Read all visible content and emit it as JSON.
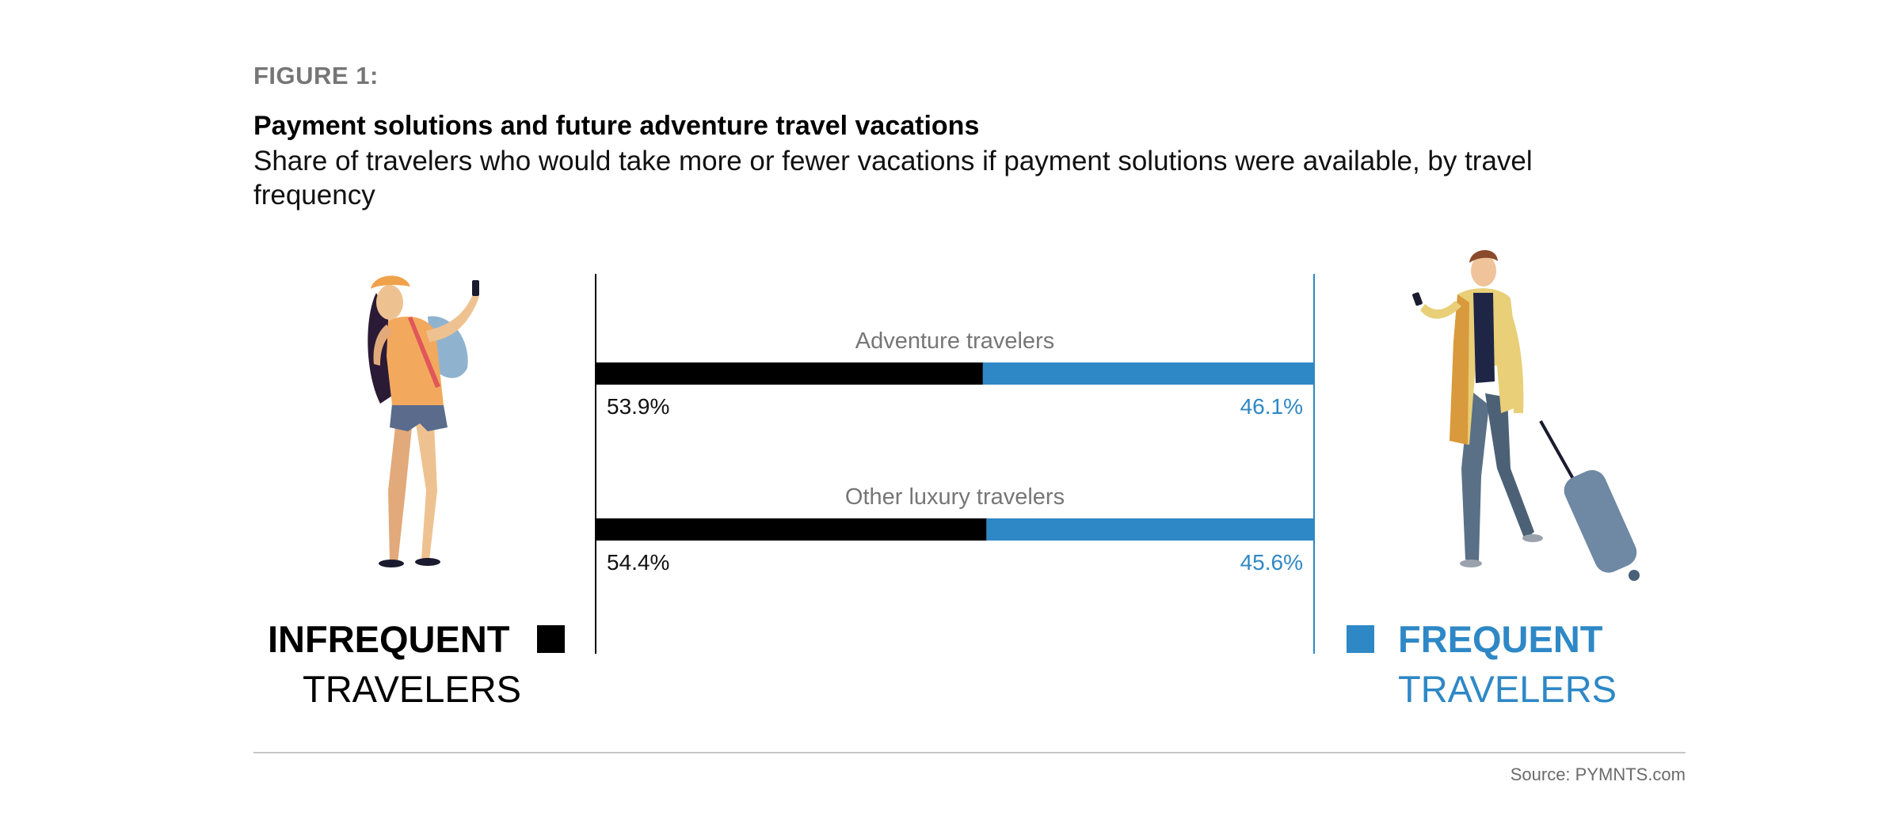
{
  "figure_label": "FIGURE 1:",
  "title": "Payment solutions and future adventure travel vacations",
  "subtitle": "Share of travelers who would take more or fewer vacations if payment solutions were available, by travel frequency",
  "source": "Source: PYMNTS.com",
  "legend": {
    "infrequent": {
      "line1": "INFREQUENT",
      "line2": "TRAVELERS",
      "color": "#000000"
    },
    "frequent": {
      "line1": "FREQUENT",
      "line2": "TRAVELERS",
      "color": "#2e88c6"
    }
  },
  "illustrations": {
    "left": "woman-traveler-taking-selfie-illustration",
    "right": "man-traveler-with-suitcase-illustration"
  },
  "chart_data": {
    "type": "bar",
    "orientation": "horizontal-stacked-100",
    "categories": [
      "Adventure travelers",
      "Other luxury travelers"
    ],
    "series": [
      {
        "name": "INFREQUENT TRAVELERS",
        "color": "#000000",
        "values": [
          53.9,
          54.4
        ],
        "labels": [
          "53.9%",
          "54.4%"
        ]
      },
      {
        "name": "FREQUENT TRAVELERS",
        "color": "#2e88c6",
        "values": [
          46.1,
          45.6
        ],
        "labels": [
          "46.1%",
          "45.6%"
        ]
      }
    ],
    "xlim": [
      0,
      100
    ],
    "unit": "%",
    "grid": false,
    "legend_placement": "sides"
  }
}
